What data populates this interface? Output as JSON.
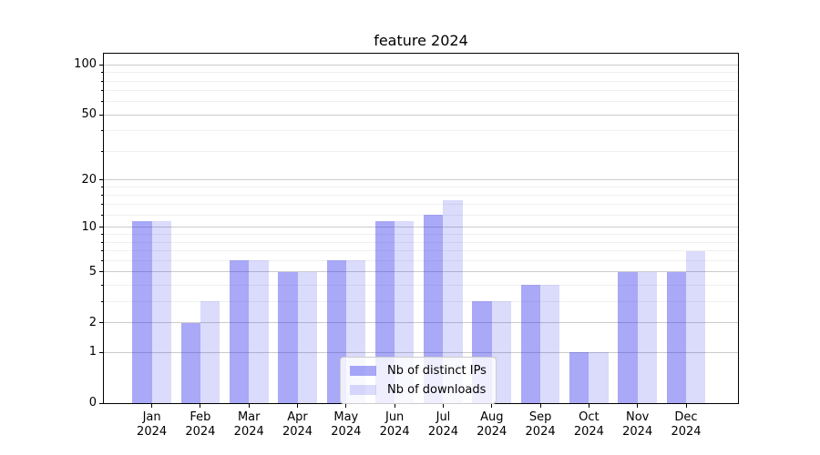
{
  "title": "feature 2024",
  "chart_data": {
    "type": "bar",
    "title": "feature 2024",
    "categories": [
      "Jan 2024",
      "Feb 2024",
      "Mar 2024",
      "Apr 2024",
      "May 2024",
      "Jun 2024",
      "Jul 2024",
      "Aug 2024",
      "Sep 2024",
      "Oct 2024",
      "Nov 2024",
      "Dec 2024"
    ],
    "series": [
      {
        "name": "Nb of distinct IPs",
        "values": [
          11,
          2,
          6,
          5,
          6,
          11,
          12,
          3,
          4,
          1,
          5,
          5
        ],
        "base_color": "#2828eb",
        "alpha": 0.4,
        "flat_color": "#a9a9f7"
      },
      {
        "name": "Nb of downloads",
        "values": [
          11,
          3,
          6,
          5,
          6,
          11,
          15,
          3,
          4,
          1,
          5,
          7
        ],
        "base_color": "#2828eb",
        "alpha": 0.17,
        "flat_color": "#dbdbf9"
      }
    ],
    "xlabel": "",
    "ylabel": "",
    "yscale": "log1p",
    "ylim": [
      0,
      119
    ],
    "yticks": [
      0,
      1,
      2,
      5,
      10,
      20,
      50,
      100
    ],
    "ytick_labels": [
      "0",
      "1",
      "2",
      "5",
      "10",
      "20",
      "50",
      "100"
    ],
    "minor_yticks": [
      3,
      4,
      6,
      7,
      8,
      9,
      12,
      14,
      16,
      18,
      30,
      40,
      60,
      70,
      80,
      90
    ],
    "grid": true,
    "legend_position": "lower center"
  },
  "legend": {
    "items": [
      {
        "label": "Nb of distinct IPs"
      },
      {
        "label": "Nb of downloads"
      }
    ]
  },
  "colors": {
    "background": "#ffffff",
    "major_grid": "#cbcbcb",
    "minor_grid": "#f0f0f0",
    "axis": "#000000",
    "text": "#000000",
    "legend_border": "#cccccc",
    "legend_background": "#ffffff",
    "legend_alpha": 0.8
  }
}
